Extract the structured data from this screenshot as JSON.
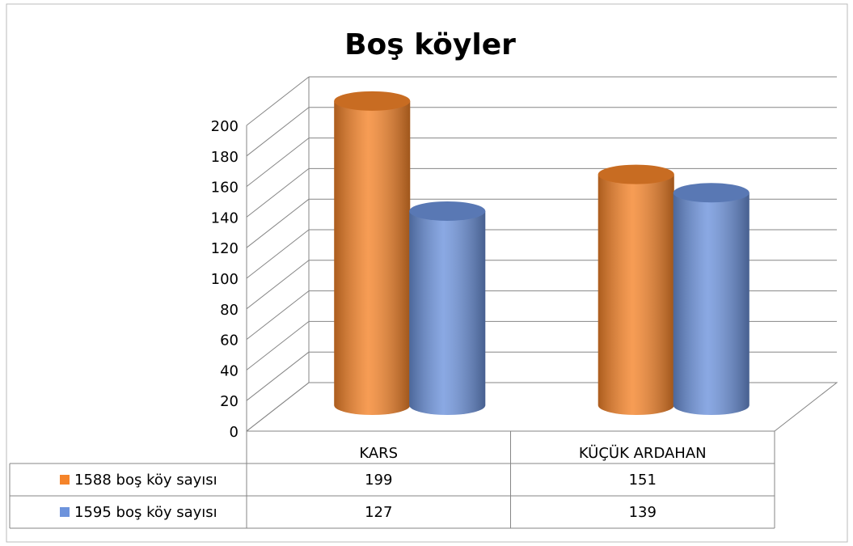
{
  "chart_data": {
    "type": "bar3d",
    "title": "Boş köyler",
    "categories": [
      "KARS",
      "KÜÇÜK ARDAHAN"
    ],
    "series": [
      {
        "name": "1588 boş köy sayısı",
        "color": "#f5842a",
        "values": [
          199,
          151
        ]
      },
      {
        "name": "1595 boş köy sayısı",
        "color": "#6d93dc",
        "values": [
          127,
          139
        ]
      }
    ],
    "ylim": [
      0,
      200
    ],
    "yticks": [
      0,
      20,
      40,
      60,
      80,
      100,
      120,
      140,
      160,
      180,
      200
    ],
    "grid": true,
    "data_table": true
  }
}
